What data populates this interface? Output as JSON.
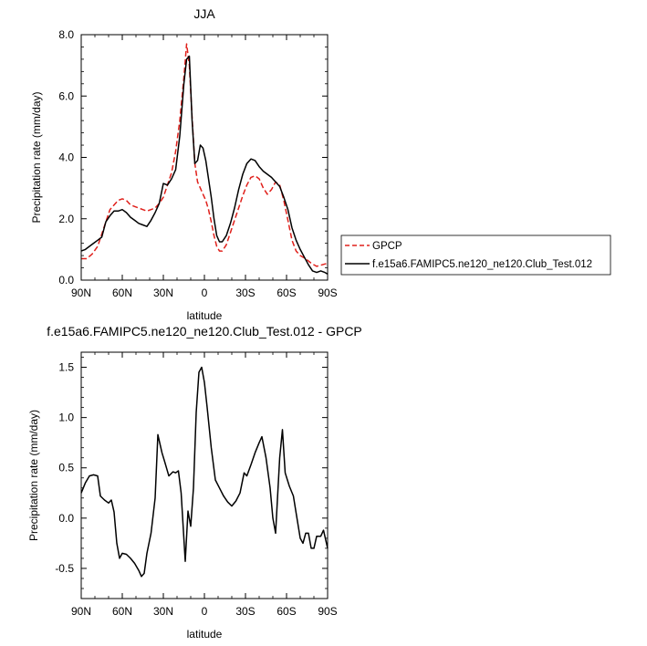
{
  "chart_data": [
    {
      "type": "line",
      "title": "JJA",
      "xlabel": "latitude",
      "ylabel": "Precipitation rate (mm/day)",
      "xlim": [
        90,
        -90
      ],
      "ylim": [
        0,
        8
      ],
      "x_ticks": [
        {
          "value": 90,
          "label": "90N"
        },
        {
          "value": 60,
          "label": "60N"
        },
        {
          "value": 30,
          "label": "30N"
        },
        {
          "value": 0,
          "label": "0"
        },
        {
          "value": -30,
          "label": "30S"
        },
        {
          "value": -60,
          "label": "60S"
        },
        {
          "value": -90,
          "label": "90S"
        }
      ],
      "y_ticks": [
        {
          "value": 0,
          "label": "0.0"
        },
        {
          "value": 2,
          "label": "2.0"
        },
        {
          "value": 4,
          "label": "4.0"
        },
        {
          "value": 6,
          "label": "6.0"
        },
        {
          "value": 8,
          "label": "8.0"
        }
      ],
      "legend_position": "right",
      "series": [
        {
          "name": "GPCP",
          "color": "#e0201b",
          "dash": true,
          "points": [
            [
              90,
              0.7
            ],
            [
              86,
              0.7
            ],
            [
              82,
              0.85
            ],
            [
              78,
              1.1
            ],
            [
              75,
              1.5
            ],
            [
              72,
              1.9
            ],
            [
              69,
              2.3
            ],
            [
              66,
              2.45
            ],
            [
              63,
              2.6
            ],
            [
              60,
              2.65
            ],
            [
              57,
              2.6
            ],
            [
              54,
              2.45
            ],
            [
              51,
              2.4
            ],
            [
              48,
              2.35
            ],
            [
              45,
              2.3
            ],
            [
              42,
              2.25
            ],
            [
              39,
              2.3
            ],
            [
              36,
              2.35
            ],
            [
              33,
              2.5
            ],
            [
              30,
              2.7
            ],
            [
              27,
              3.1
            ],
            [
              24,
              3.5
            ],
            [
              21,
              4.2
            ],
            [
              18,
              5.2
            ],
            [
              15,
              6.6
            ],
            [
              13,
              7.7
            ],
            [
              11,
              7.0
            ],
            [
              9,
              5.3
            ],
            [
              7,
              3.8
            ],
            [
              5,
              3.2
            ],
            [
              3,
              3.0
            ],
            [
              1,
              2.8
            ],
            [
              -1,
              2.6
            ],
            [
              -3,
              2.3
            ],
            [
              -5,
              1.9
            ],
            [
              -7,
              1.45
            ],
            [
              -9,
              1.1
            ],
            [
              -11,
              0.95
            ],
            [
              -13,
              0.95
            ],
            [
              -16,
              1.15
            ],
            [
              -19,
              1.55
            ],
            [
              -22,
              1.95
            ],
            [
              -25,
              2.35
            ],
            [
              -28,
              2.75
            ],
            [
              -31,
              3.1
            ],
            [
              -34,
              3.35
            ],
            [
              -37,
              3.4
            ],
            [
              -40,
              3.3
            ],
            [
              -43,
              3.0
            ],
            [
              -46,
              2.8
            ],
            [
              -49,
              2.95
            ],
            [
              -52,
              3.2
            ],
            [
              -55,
              3.1
            ],
            [
              -58,
              2.6
            ],
            [
              -61,
              1.95
            ],
            [
              -64,
              1.3
            ],
            [
              -67,
              0.95
            ],
            [
              -70,
              0.8
            ],
            [
              -74,
              0.7
            ],
            [
              -78,
              0.55
            ],
            [
              -82,
              0.45
            ],
            [
              -86,
              0.5
            ],
            [
              -90,
              0.55
            ]
          ]
        },
        {
          "name": "f.e15a6.FAMIPC5.ne120_ne120.Club_Test.012",
          "color": "#000000",
          "dash": false,
          "points": [
            [
              90,
              0.95
            ],
            [
              87,
              1.0
            ],
            [
              84,
              1.1
            ],
            [
              81,
              1.2
            ],
            [
              78,
              1.3
            ],
            [
              75,
              1.4
            ],
            [
              72,
              1.9
            ],
            [
              69,
              2.1
            ],
            [
              66,
              2.25
            ],
            [
              63,
              2.25
            ],
            [
              60,
              2.3
            ],
            [
              57,
              2.2
            ],
            [
              54,
              2.05
            ],
            [
              51,
              1.95
            ],
            [
              48,
              1.85
            ],
            [
              45,
              1.8
            ],
            [
              42,
              1.75
            ],
            [
              39,
              1.95
            ],
            [
              36,
              2.2
            ],
            [
              33,
              2.5
            ],
            [
              30,
              3.15
            ],
            [
              27,
              3.1
            ],
            [
              24,
              3.3
            ],
            [
              21,
              3.6
            ],
            [
              18,
              4.7
            ],
            [
              15,
              6.4
            ],
            [
              13,
              7.2
            ],
            [
              11,
              7.3
            ],
            [
              9,
              5.2
            ],
            [
              7,
              3.8
            ],
            [
              5,
              3.9
            ],
            [
              3,
              4.4
            ],
            [
              1,
              4.3
            ],
            [
              -1,
              3.9
            ],
            [
              -3,
              3.3
            ],
            [
              -5,
              2.7
            ],
            [
              -7,
              2.0
            ],
            [
              -9,
              1.45
            ],
            [
              -11,
              1.25
            ],
            [
              -13,
              1.25
            ],
            [
              -16,
              1.45
            ],
            [
              -19,
              1.85
            ],
            [
              -22,
              2.35
            ],
            [
              -25,
              2.95
            ],
            [
              -28,
              3.45
            ],
            [
              -31,
              3.8
            ],
            [
              -34,
              3.95
            ],
            [
              -37,
              3.9
            ],
            [
              -40,
              3.7
            ],
            [
              -43,
              3.55
            ],
            [
              -46,
              3.45
            ],
            [
              -49,
              3.35
            ],
            [
              -52,
              3.2
            ],
            [
              -55,
              3.05
            ],
            [
              -58,
              2.7
            ],
            [
              -61,
              2.3
            ],
            [
              -64,
              1.7
            ],
            [
              -67,
              1.3
            ],
            [
              -70,
              1.0
            ],
            [
              -73,
              0.75
            ],
            [
              -76,
              0.5
            ],
            [
              -79,
              0.3
            ],
            [
              -82,
              0.25
            ],
            [
              -85,
              0.3
            ],
            [
              -88,
              0.25
            ],
            [
              -90,
              0.2
            ]
          ]
        }
      ]
    },
    {
      "type": "line",
      "title": "f.e15a6.FAMIPC5.ne120_ne120.Club_Test.012 - GPCP",
      "xlabel": "latitude",
      "ylabel": "Precipitation rate (mm/day)",
      "xlim": [
        90,
        -90
      ],
      "ylim": [
        -0.8,
        1.65
      ],
      "x_ticks": [
        {
          "value": 90,
          "label": "90N"
        },
        {
          "value": 60,
          "label": "60N"
        },
        {
          "value": 30,
          "label": "30N"
        },
        {
          "value": 0,
          "label": "0"
        },
        {
          "value": -30,
          "label": "30S"
        },
        {
          "value": -60,
          "label": "60S"
        },
        {
          "value": -90,
          "label": "90S"
        }
      ],
      "y_ticks": [
        {
          "value": -0.5,
          "label": "-0.5"
        },
        {
          "value": 0,
          "label": "0.0"
        },
        {
          "value": 0.5,
          "label": "0.5"
        },
        {
          "value": 1.0,
          "label": "1.0"
        },
        {
          "value": 1.5,
          "label": "1.5"
        }
      ],
      "series": [
        {
          "color": "#000000",
          "dash": false,
          "points": [
            [
              90,
              0.25
            ],
            [
              87,
              0.35
            ],
            [
              84,
              0.42
            ],
            [
              81,
              0.43
            ],
            [
              78,
              0.42
            ],
            [
              76,
              0.22
            ],
            [
              73,
              0.18
            ],
            [
              70,
              0.15
            ],
            [
              68,
              0.18
            ],
            [
              66,
              0.06
            ],
            [
              64,
              -0.25
            ],
            [
              62,
              -0.4
            ],
            [
              60,
              -0.35
            ],
            [
              57,
              -0.36
            ],
            [
              54,
              -0.4
            ],
            [
              51,
              -0.45
            ],
            [
              48,
              -0.52
            ],
            [
              46,
              -0.58
            ],
            [
              44,
              -0.55
            ],
            [
              42,
              -0.35
            ],
            [
              39,
              -0.15
            ],
            [
              36,
              0.2
            ],
            [
              34,
              0.83
            ],
            [
              31,
              0.65
            ],
            [
              29,
              0.56
            ],
            [
              26,
              0.42
            ],
            [
              23,
              0.46
            ],
            [
              21,
              0.45
            ],
            [
              19,
              0.47
            ],
            [
              17,
              0.25
            ],
            [
              14,
              -0.43
            ],
            [
              12,
              0.07
            ],
            [
              10,
              -0.08
            ],
            [
              8,
              0.3
            ],
            [
              6,
              1.05
            ],
            [
              4,
              1.45
            ],
            [
              2,
              1.5
            ],
            [
              0,
              1.35
            ],
            [
              -2,
              1.1
            ],
            [
              -5,
              0.7
            ],
            [
              -8,
              0.38
            ],
            [
              -11,
              0.3
            ],
            [
              -14,
              0.22
            ],
            [
              -17,
              0.16
            ],
            [
              -20,
              0.12
            ],
            [
              -23,
              0.17
            ],
            [
              -26,
              0.25
            ],
            [
              -29,
              0.45
            ],
            [
              -31,
              0.42
            ],
            [
              -34,
              0.53
            ],
            [
              -37,
              0.65
            ],
            [
              -40,
              0.75
            ],
            [
              -42,
              0.81
            ],
            [
              -45,
              0.6
            ],
            [
              -48,
              0.3
            ],
            [
              -50,
              0.0
            ],
            [
              -52,
              -0.15
            ],
            [
              -55,
              0.6
            ],
            [
              -57,
              0.88
            ],
            [
              -59,
              0.45
            ],
            [
              -62,
              0.32
            ],
            [
              -65,
              0.22
            ],
            [
              -67,
              0.05
            ],
            [
              -70,
              -0.2
            ],
            [
              -72,
              -0.25
            ],
            [
              -74,
              -0.15
            ],
            [
              -76,
              -0.15
            ],
            [
              -78,
              -0.3
            ],
            [
              -80,
              -0.3
            ],
            [
              -82,
              -0.18
            ],
            [
              -85,
              -0.18
            ],
            [
              -87,
              -0.12
            ],
            [
              -90,
              -0.3
            ]
          ]
        }
      ]
    }
  ]
}
